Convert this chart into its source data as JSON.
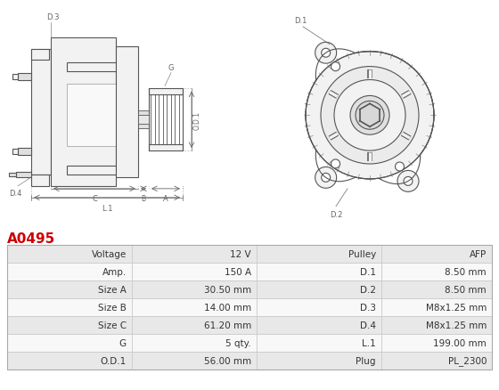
{
  "title": "A0495",
  "title_color": "#cc0000",
  "table_data": [
    [
      "Voltage",
      "12 V",
      "Pulley",
      "AFP"
    ],
    [
      "Amp.",
      "150 A",
      "D.1",
      "8.50 mm"
    ],
    [
      "Size A",
      "30.50 mm",
      "D.2",
      "8.50 mm"
    ],
    [
      "Size B",
      "14.00 mm",
      "D.3",
      "M8x1.25 mm"
    ],
    [
      "Size C",
      "61.20 mm",
      "D.4",
      "M8x1.25 mm"
    ],
    [
      "G",
      "5 qty.",
      "L.1",
      "199.00 mm"
    ],
    [
      "O.D.1",
      "56.00 mm",
      "Plug",
      "PL_2300"
    ]
  ],
  "row_bg_even": "#e8e8e8",
  "row_bg_odd": "#f8f8f8",
  "border_color": "#cccccc",
  "text_color": "#333333",
  "fig_bg": "#ffffff",
  "table_fontsize": 7.5,
  "dim_color": "#666666",
  "line_color": "#555555",
  "fill_light": "#f2f2f2",
  "fill_mid": "#e0e0e0"
}
